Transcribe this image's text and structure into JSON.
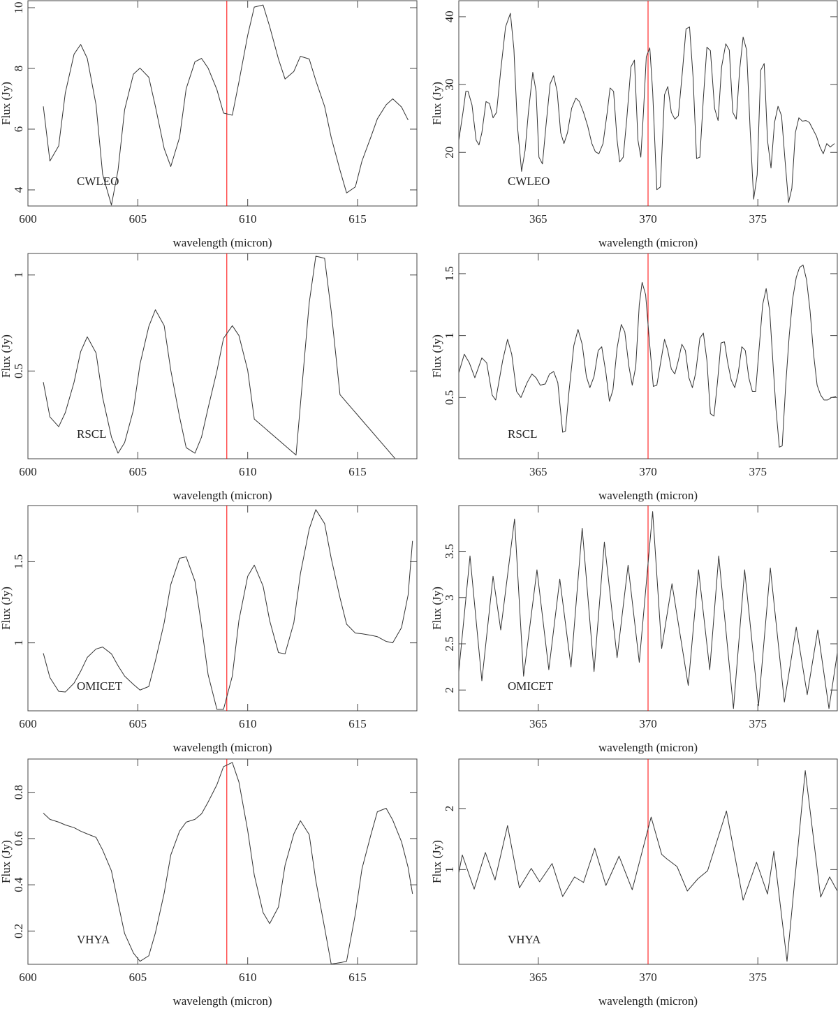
{
  "chart_data": [
    {
      "type": "line",
      "xlabel": "wavelength (micron)",
      "ylabel": "Flux (Jy)",
      "annotation": "CWLEO",
      "xlim": [
        600,
        617.7
      ],
      "xticks": [
        600,
        605,
        610,
        615
      ],
      "ylim": [
        3.47,
        10.23
      ],
      "yticks": [
        4,
        6,
        8,
        10
      ],
      "vline": 609.05,
      "vline_color": "#ff0000",
      "color": "#333333",
      "x": [
        600.7,
        601.0,
        601.4,
        601.7,
        602.1,
        602.4,
        602.7,
        603.1,
        603.4,
        603.8,
        604.1,
        604.4,
        604.8,
        605.1,
        605.5,
        605.8,
        606.2,
        606.5,
        606.9,
        607.2,
        607.6,
        607.9,
        608.2,
        608.6,
        608.9,
        609.3,
        609.6,
        610.0,
        610.3,
        610.7,
        611.0,
        611.4,
        611.7,
        612.1,
        612.4,
        612.8,
        613.1,
        613.5,
        613.8,
        614.2,
        614.5,
        614.9,
        615.2,
        615.6,
        615.9,
        616.3,
        616.6,
        617.0,
        617.3
      ],
      "values": [
        6.75,
        4.95,
        5.45,
        7.19,
        8.47,
        8.79,
        8.33,
        6.8,
        4.51,
        3.5,
        4.65,
        6.64,
        7.81,
        8.01,
        7.71,
        6.75,
        5.36,
        4.77,
        5.73,
        7.33,
        8.22,
        8.33,
        8.01,
        7.3,
        6.53,
        6.46,
        7.55,
        9.09,
        10.02,
        10.09,
        9.38,
        8.31,
        7.65,
        7.9,
        8.4,
        8.31,
        7.6,
        6.75,
        5.73,
        4.65,
        3.9,
        4.1,
        4.95,
        5.73,
        6.34,
        6.8,
        7.0,
        6.73,
        6.3
      ]
    },
    {
      "type": "line",
      "xlabel": "wavelength (micron)",
      "ylabel": "Flux (Jy)",
      "annotation": "CWLEO",
      "xlim": [
        361.38,
        378.62
      ],
      "xticks": [
        365,
        370,
        375
      ],
      "ylim": [
        12.1,
        42.36
      ],
      "yticks": [
        20,
        30,
        40
      ],
      "vline": 370.0,
      "vline_color": "#ff0000",
      "color": "#333333",
      "x": [
        361.38,
        361.57,
        361.7,
        361.8,
        361.98,
        362.17,
        362.3,
        362.43,
        362.62,
        362.78,
        362.94,
        363.1,
        363.29,
        363.51,
        363.73,
        363.89,
        364.05,
        364.24,
        364.4,
        364.55,
        364.75,
        364.9,
        365.03,
        365.19,
        365.35,
        365.54,
        365.7,
        365.86,
        366.02,
        366.17,
        366.33,
        366.52,
        366.71,
        366.87,
        367.06,
        367.25,
        367.44,
        367.6,
        367.76,
        367.95,
        368.14,
        368.27,
        368.43,
        368.59,
        368.71,
        368.87,
        369.03,
        369.22,
        369.38,
        369.54,
        369.67,
        369.79,
        369.92,
        370.08,
        370.21,
        370.4,
        370.56,
        370.75,
        370.9,
        371.06,
        371.22,
        371.38,
        371.57,
        371.73,
        371.89,
        372.05,
        372.21,
        372.36,
        372.52,
        372.68,
        372.84,
        373.03,
        373.19,
        373.35,
        373.54,
        373.7,
        373.86,
        374.02,
        374.17,
        374.33,
        374.49,
        374.65,
        374.81,
        374.97,
        375.13,
        375.29,
        375.44,
        375.6,
        375.76,
        375.92,
        376.08,
        376.24,
        376.4,
        376.55,
        376.71,
        376.87,
        377.03,
        377.19,
        377.35,
        377.51,
        377.67,
        377.83,
        377.98,
        378.14,
        378.3,
        378.49
      ],
      "values": [
        21.8,
        25.9,
        29.0,
        29.0,
        27.0,
        21.8,
        21.1,
        22.9,
        27.5,
        27.2,
        25.1,
        25.9,
        32.1,
        38.5,
        40.5,
        35.2,
        23.9,
        17.2,
        20.3,
        25.9,
        31.8,
        29.0,
        19.3,
        18.3,
        23.9,
        30.1,
        31.3,
        29.0,
        22.9,
        21.3,
        22.9,
        26.5,
        28.0,
        27.5,
        25.9,
        23.9,
        21.3,
        20.1,
        19.8,
        21.3,
        25.9,
        29.5,
        29.0,
        21.8,
        18.6,
        19.3,
        24.9,
        32.6,
        33.6,
        21.8,
        19.3,
        25.9,
        34.1,
        35.4,
        29.0,
        14.5,
        14.9,
        28.5,
        29.7,
        25.9,
        24.9,
        25.4,
        32.1,
        38.2,
        38.5,
        31.1,
        19.1,
        19.3,
        28.0,
        35.5,
        35.0,
        26.5,
        24.7,
        32.6,
        36.0,
        35.1,
        25.9,
        24.9,
        32.1,
        37.0,
        35.1,
        23.4,
        13.1,
        16.7,
        32.1,
        33.1,
        21.8,
        17.7,
        24.4,
        26.8,
        25.4,
        18.8,
        12.6,
        14.7,
        22.9,
        25.1,
        24.6,
        24.7,
        24.4,
        23.4,
        22.4,
        20.8,
        19.8,
        21.3,
        20.8,
        21.3
      ]
    },
    {
      "type": "line",
      "xlabel": "wavelength (micron)",
      "ylabel": "Flux (Jy)",
      "annotation": "RSCL",
      "xlim": [
        600,
        617.7
      ],
      "xticks": [
        600,
        605,
        610,
        615
      ],
      "ylim": [
        0.043,
        1.112
      ],
      "yticks": [
        0.5,
        1
      ],
      "vline": 609.05,
      "vline_color": "#ff0000",
      "color": "#333333",
      "x": [
        600.7,
        601.0,
        601.4,
        601.7,
        602.1,
        602.4,
        602.7,
        603.1,
        603.4,
        603.8,
        604.1,
        604.4,
        604.8,
        605.1,
        605.5,
        605.8,
        606.2,
        606.5,
        606.9,
        607.2,
        607.6,
        607.9,
        608.2,
        608.6,
        608.9,
        609.3,
        609.6,
        610.0,
        610.3,
        612.2,
        612.8,
        613.1,
        613.5,
        613.8,
        614.2,
        616.7
      ],
      "values": [
        0.442,
        0.261,
        0.21,
        0.283,
        0.442,
        0.601,
        0.678,
        0.594,
        0.362,
        0.156,
        0.072,
        0.127,
        0.297,
        0.536,
        0.732,
        0.819,
        0.736,
        0.504,
        0.261,
        0.101,
        0.072,
        0.156,
        0.308,
        0.5,
        0.67,
        0.736,
        0.685,
        0.504,
        0.25,
        0.062,
        0.855,
        1.098,
        1.087,
        0.812,
        0.377,
        0.045
      ]
    },
    {
      "type": "line",
      "xlabel": "wavelength (micron)",
      "ylabel": "Flux (Jy)",
      "annotation": "RSCL",
      "xlim": [
        361.38,
        378.62
      ],
      "xticks": [
        365,
        370,
        375
      ],
      "ylim": [
        0.006,
        1.663
      ],
      "yticks": [
        0.5,
        1,
        1.5
      ],
      "vline": 370.0,
      "vline_color": "#ff0000",
      "color": "#333333",
      "x": [
        361.38,
        361.63,
        361.86,
        362.11,
        362.43,
        362.65,
        362.9,
        363.06,
        363.38,
        363.6,
        363.79,
        364.01,
        364.21,
        364.49,
        364.71,
        364.9,
        365.09,
        365.32,
        365.51,
        365.7,
        365.89,
        366.11,
        366.24,
        366.4,
        366.62,
        366.81,
        367.0,
        367.19,
        367.35,
        367.54,
        367.73,
        367.89,
        368.08,
        368.24,
        368.4,
        368.59,
        368.78,
        368.94,
        369.13,
        369.28,
        369.44,
        369.6,
        369.73,
        369.89,
        370.05,
        370.24,
        370.4,
        370.59,
        370.75,
        370.9,
        371.06,
        371.22,
        371.38,
        371.54,
        371.7,
        371.86,
        372.02,
        372.17,
        372.36,
        372.52,
        372.68,
        372.84,
        373.0,
        373.16,
        373.32,
        373.48,
        373.63,
        373.79,
        373.95,
        374.11,
        374.27,
        374.43,
        374.59,
        374.75,
        374.9,
        375.06,
        375.22,
        375.38,
        375.54,
        375.7,
        375.83,
        375.98,
        376.11,
        376.27,
        376.43,
        376.59,
        376.75,
        376.9,
        377.06,
        377.22,
        377.38,
        377.54,
        377.7,
        377.86,
        378.02,
        378.17,
        378.36,
        378.56
      ],
      "values": [
        0.7,
        0.85,
        0.78,
        0.66,
        0.82,
        0.78,
        0.52,
        0.48,
        0.8,
        0.97,
        0.85,
        0.55,
        0.5,
        0.62,
        0.69,
        0.66,
        0.6,
        0.61,
        0.69,
        0.71,
        0.62,
        0.22,
        0.23,
        0.55,
        0.92,
        1.05,
        0.93,
        0.67,
        0.58,
        0.67,
        0.88,
        0.91,
        0.7,
        0.47,
        0.56,
        0.9,
        1.09,
        1.03,
        0.75,
        0.6,
        0.75,
        1.25,
        1.43,
        1.33,
        0.98,
        0.59,
        0.6,
        0.8,
        0.97,
        0.88,
        0.73,
        0.69,
        0.8,
        0.93,
        0.88,
        0.66,
        0.58,
        0.7,
        0.98,
        1.02,
        0.8,
        0.37,
        0.35,
        0.62,
        0.94,
        0.95,
        0.78,
        0.64,
        0.58,
        0.7,
        0.91,
        0.88,
        0.66,
        0.55,
        0.55,
        0.9,
        1.25,
        1.38,
        1.2,
        0.75,
        0.4,
        0.1,
        0.11,
        0.6,
        1.0,
        1.3,
        1.47,
        1.55,
        1.57,
        1.45,
        1.2,
        0.85,
        0.6,
        0.52,
        0.48,
        0.48,
        0.5,
        0.51
      ]
    },
    {
      "type": "line",
      "xlabel": "wavelength (micron)",
      "ylabel": "Flux (Jy)",
      "annotation": "OMICET",
      "xlim": [
        600,
        617.7
      ],
      "xticks": [
        600,
        605,
        610,
        615
      ],
      "ylim": [
        0.581,
        1.846
      ],
      "yticks": [
        1,
        1.5
      ],
      "vline": 609.05,
      "vline_color": "#ff0000",
      "color": "#333333",
      "x": [
        600.7,
        601.0,
        601.4,
        601.7,
        602.1,
        602.4,
        602.7,
        603.1,
        603.4,
        603.8,
        604.1,
        604.4,
        604.8,
        605.1,
        605.5,
        605.8,
        606.2,
        606.5,
        606.9,
        607.2,
        607.6,
        607.9,
        608.2,
        608.6,
        608.9,
        609.3,
        609.6,
        610.0,
        610.3,
        610.7,
        611.0,
        611.4,
        611.7,
        612.1,
        612.4,
        612.8,
        613.1,
        613.5,
        613.8,
        614.2,
        614.5,
        614.9,
        615.2,
        615.6,
        615.9,
        616.3,
        616.6,
        617.0,
        617.3,
        617.5
      ],
      "values": [
        0.936,
        0.786,
        0.701,
        0.697,
        0.752,
        0.825,
        0.91,
        0.962,
        0.974,
        0.932,
        0.859,
        0.795,
        0.744,
        0.709,
        0.731,
        0.889,
        1.124,
        1.359,
        1.521,
        1.53,
        1.38,
        1.103,
        0.803,
        0.59,
        0.59,
        0.795,
        1.137,
        1.41,
        1.479,
        1.35,
        1.137,
        0.94,
        0.932,
        1.124,
        1.427,
        1.701,
        1.821,
        1.735,
        1.521,
        1.278,
        1.115,
        1.06,
        1.056,
        1.047,
        1.038,
        1.009,
        1.0,
        1.094,
        1.295,
        1.628
      ]
    },
    {
      "type": "line",
      "xlabel": "wavelength (micron)",
      "ylabel": "Flux (Jy)",
      "annotation": "OMICET",
      "xlim": [
        361.38,
        378.62
      ],
      "xticks": [
        365,
        370,
        375
      ],
      "ylim": [
        1.775,
        3.995
      ],
      "yticks": [
        2,
        2.5,
        3,
        3.5
      ],
      "vline": 370.0,
      "vline_color": "#ff0000",
      "color": "#333333",
      "x": [
        361.38,
        361.89,
        362.43,
        362.94,
        363.29,
        363.92,
        364.33,
        364.94,
        365.48,
        365.98,
        366.49,
        367.0,
        367.54,
        368.01,
        368.59,
        369.09,
        369.6,
        370.21,
        370.62,
        371.09,
        371.83,
        372.3,
        372.81,
        373.22,
        373.89,
        374.4,
        375.03,
        375.57,
        376.21,
        376.75,
        377.25,
        377.73,
        378.24,
        378.62
      ],
      "values": [
        2.2,
        3.45,
        2.1,
        3.23,
        2.65,
        3.85,
        2.15,
        3.3,
        2.22,
        3.2,
        2.25,
        3.75,
        2.2,
        3.6,
        2.35,
        3.35,
        2.3,
        3.93,
        2.45,
        3.15,
        2.05,
        3.3,
        2.22,
        3.45,
        1.8,
        3.3,
        1.83,
        3.32,
        1.87,
        2.68,
        1.95,
        2.65,
        1.8,
        2.4
      ]
    },
    {
      "type": "line",
      "xlabel": "wavelength (micron)",
      "ylabel": "Flux (Jy)",
      "annotation": "VHYA",
      "xlim": [
        600,
        617.7
      ],
      "xticks": [
        600,
        605,
        610,
        615
      ],
      "ylim": [
        0.056,
        0.944
      ],
      "yticks": [
        0.2,
        0.4,
        0.6,
        0.8
      ],
      "vline": 609.05,
      "vline_color": "#ff0000",
      "color": "#333333",
      "x": [
        600.7,
        601.0,
        601.4,
        601.7,
        602.1,
        602.4,
        602.7,
        603.1,
        603.4,
        603.8,
        604.1,
        604.4,
        604.8,
        605.1,
        605.5,
        605.8,
        606.2,
        606.5,
        606.9,
        607.2,
        607.6,
        607.9,
        608.2,
        608.6,
        608.9,
        609.3,
        609.6,
        610.0,
        610.3,
        610.7,
        611.0,
        611.4,
        611.7,
        612.1,
        612.4,
        612.8,
        613.1,
        613.5,
        613.8,
        614.2,
        614.5,
        614.9,
        615.2,
        615.6,
        615.9,
        616.3,
        616.6,
        617.0,
        617.3,
        617.5
      ],
      "values": [
        0.71,
        0.683,
        0.671,
        0.659,
        0.647,
        0.632,
        0.62,
        0.605,
        0.55,
        0.46,
        0.322,
        0.189,
        0.105,
        0.069,
        0.093,
        0.192,
        0.364,
        0.529,
        0.632,
        0.671,
        0.683,
        0.707,
        0.758,
        0.833,
        0.911,
        0.929,
        0.845,
        0.635,
        0.442,
        0.28,
        0.232,
        0.304,
        0.484,
        0.62,
        0.677,
        0.617,
        0.418,
        0.214,
        0.057,
        0.063,
        0.069,
        0.274,
        0.469,
        0.614,
        0.716,
        0.731,
        0.68,
        0.586,
        0.475,
        0.361
      ]
    },
    {
      "type": "line",
      "xlabel": "wavelength (micron)",
      "ylabel": "Flux (Jy)",
      "annotation": "VHYA",
      "xlim": [
        361.38,
        378.62
      ],
      "xticks": [
        365,
        370,
        375
      ],
      "ylim": [
        -0.55,
        2.81
      ],
      "yticks": [
        1,
        2
      ],
      "vline": 370.0,
      "vline_color": "#ff0000",
      "color": "#333333",
      "x": [
        361.38,
        361.54,
        362.08,
        362.59,
        363.03,
        363.6,
        364.14,
        364.68,
        365.06,
        365.63,
        366.11,
        366.65,
        367.06,
        367.57,
        368.08,
        368.68,
        369.28,
        370.14,
        370.62,
        370.84,
        371.32,
        371.79,
        372.27,
        372.71,
        373.57,
        374.33,
        374.94,
        375.44,
        375.73,
        376.33,
        377.16,
        377.86,
        378.27,
        378.62
      ],
      "values": [
        0.95,
        1.24,
        0.68,
        1.28,
        0.83,
        1.72,
        0.7,
        1.02,
        0.8,
        1.1,
        0.56,
        0.88,
        0.79,
        1.35,
        0.74,
        1.22,
        0.67,
        1.86,
        1.25,
        1.18,
        1.05,
        0.65,
        0.85,
        0.98,
        1.96,
        0.5,
        1.12,
        0.6,
        1.3,
        -0.5,
        2.62,
        0.55,
        0.88,
        0.65
      ]
    }
  ]
}
